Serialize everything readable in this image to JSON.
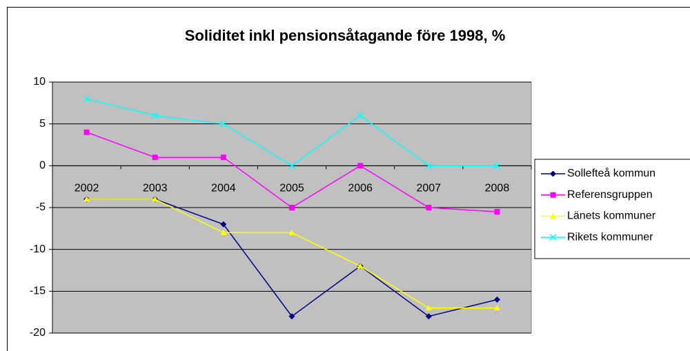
{
  "chart_data": {
    "type": "line",
    "title": "Soliditet inkl pensionsåtagande före 1998, %",
    "categories": [
      "2002",
      "2003",
      "2004",
      "2005",
      "2006",
      "2007",
      "2008"
    ],
    "series": [
      {
        "name": "Sollefteå kommun",
        "color": "#000080",
        "marker": "diamond",
        "values": [
          -4,
          -4,
          -7,
          -18,
          -12,
          -18,
          -16
        ]
      },
      {
        "name": "Referensgruppen",
        "color": "#ff00ff",
        "marker": "square",
        "values": [
          4,
          1,
          1,
          -5,
          0,
          -5,
          -5.5
        ]
      },
      {
        "name": "Länets kommuner",
        "color": "#ffff00",
        "marker": "triangle",
        "values": [
          -4,
          -4,
          -8,
          -8,
          -12,
          -17,
          -17
        ]
      },
      {
        "name": "Rikets kommuner",
        "color": "#00ffff",
        "marker": "x",
        "values": [
          8,
          6,
          5,
          0,
          6,
          0,
          0
        ]
      }
    ],
    "ylim": [
      -20,
      10
    ],
    "yticks": [
      -20,
      -15,
      -10,
      -5,
      0,
      5,
      10
    ],
    "grid": true,
    "legend": "right"
  }
}
